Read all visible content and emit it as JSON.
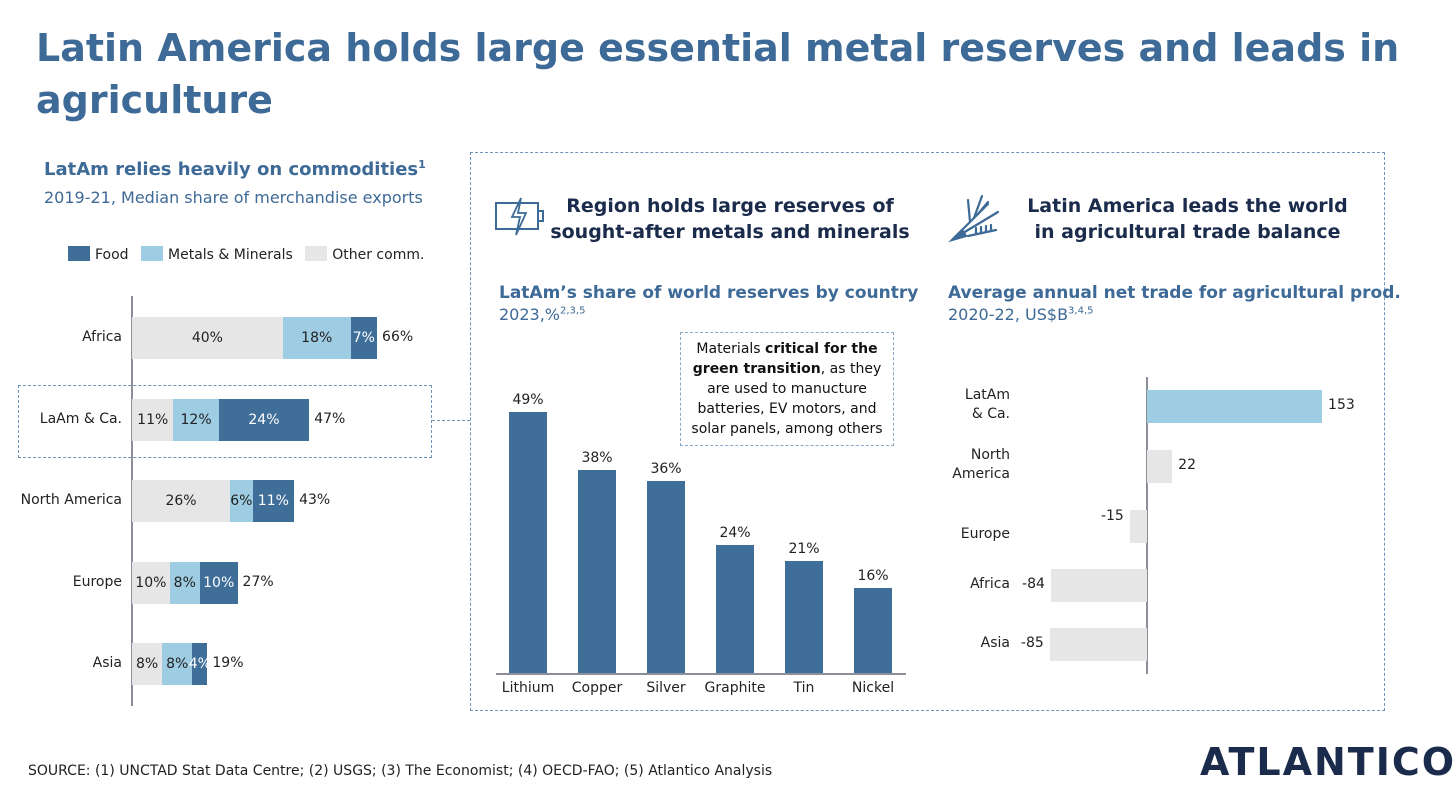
{
  "title": "Latin America holds large essential metal reserves and leads in agriculture",
  "source": "SOURCE: (1) UNCTAD Stat Data Centre; (2) USGS; (3) The Economist; (4) OECD-FAO; (5) Atlantico Analysis",
  "logo": "ATLANTICO",
  "colors": {
    "food": "#3f6e99",
    "metals": "#9ecde3",
    "other": "#e6e6e6",
    "title": "#3d6a96"
  },
  "chart_data": [
    {
      "type": "bar",
      "orientation": "horizontal-stacked",
      "title": "LatAm relies heavily on commodities",
      "title_sup": "1",
      "subtitle": "2019-21, Median share of merchandise exports",
      "legend": [
        "Food",
        "Metals & Minerals",
        "Other comm."
      ],
      "categories": [
        "Africa",
        "LaAm & Ca.",
        "North America",
        "Europe",
        "Asia"
      ],
      "series": [
        {
          "name": "Other comm.",
          "values": [
            40,
            11,
            26,
            10,
            8
          ]
        },
        {
          "name": "Metals & Minerals",
          "values": [
            18,
            12,
            6,
            8,
            8
          ]
        },
        {
          "name": "Food",
          "values": [
            7,
            24,
            11,
            10,
            4
          ]
        }
      ],
      "totals": [
        "66%",
        "47%",
        "43%",
        "27%",
        "19%"
      ],
      "unit": "%"
    },
    {
      "type": "bar",
      "heading": "Region holds large reserves of sought-after metals and minerals",
      "title": "LatAm’s share of world reserves by country",
      "subtitle": "2023,%",
      "subtitle_sup": "2,3,5",
      "categories": [
        "Lithium",
        "Copper",
        "Silver",
        "Graphite",
        "Tin",
        "Nickel"
      ],
      "values": [
        49,
        38,
        36,
        24,
        21,
        16
      ],
      "unit": "%",
      "ylim": [
        0,
        55
      ],
      "note": {
        "pre": "Materials ",
        "bold": "critical for the green transition",
        "post": ", as they are used to manucture batteries, EV motors, and solar panels, among others"
      }
    },
    {
      "type": "bar",
      "orientation": "horizontal",
      "heading": "Latin America leads the world in agricultural trade balance",
      "title": "Average annual net trade for agricultural prod.",
      "subtitle": "2020-22, US$B",
      "subtitle_sup": "3,4,5",
      "categories": [
        "LatAm & Ca.",
        "North America",
        "Europe",
        "Africa",
        "Asia"
      ],
      "category_lines": [
        [
          "LatAm",
          "& Ca."
        ],
        [
          "North",
          "America"
        ],
        [
          "Europe"
        ],
        [
          "Africa"
        ],
        [
          "Asia"
        ]
      ],
      "values": [
        153,
        22,
        -15,
        -84,
        -85
      ],
      "highlight": "LatAm & Ca."
    }
  ]
}
